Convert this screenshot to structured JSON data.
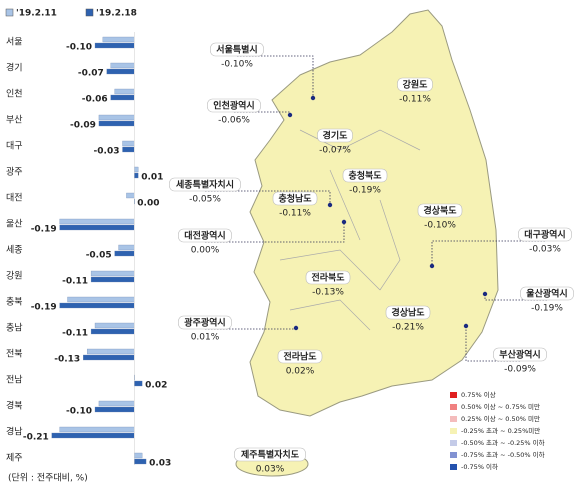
{
  "chart_data": {
    "type": "hbar",
    "categories": [
      "서울",
      "경기",
      "인천",
      "부산",
      "대구",
      "광주",
      "대전",
      "울산",
      "세종",
      "강원",
      "충북",
      "충남",
      "전북",
      "전남",
      "경북",
      "경남",
      "제주"
    ],
    "series": [
      {
        "name": "'19.2.11",
        "color": "#a9c4e6",
        "values": [
          -0.08,
          -0.06,
          -0.05,
          -0.09,
          -0.03,
          0.01,
          -0.02,
          -0.19,
          -0.04,
          -0.11,
          -0.17,
          -0.1,
          -0.12,
          0.0,
          -0.09,
          -0.19,
          0.02
        ]
      },
      {
        "name": "'19.2.18",
        "color": "#2e62b0",
        "values": [
          -0.1,
          -0.07,
          -0.06,
          -0.09,
          -0.03,
          0.01,
          0.0,
          -0.19,
          -0.05,
          -0.11,
          -0.19,
          -0.11,
          -0.13,
          0.02,
          -0.1,
          -0.21,
          0.03
        ],
        "value_labels": [
          "-0.10",
          "-0.07",
          "-0.06",
          "-0.09",
          "-0.03",
          "0.01",
          "0.00",
          "-0.19",
          "-0.05",
          "-0.11",
          "-0.19",
          "-0.11",
          "-0.13",
          "0.02",
          "-0.10",
          "-0.21",
          "0.03"
        ]
      }
    ],
    "xlim": [
      -0.24,
      0.04
    ],
    "note": "(단위 : 전주대비, %)"
  },
  "map": {
    "regions": [
      {
        "name": "서울특별시",
        "label": "-0.10%"
      },
      {
        "name": "강원도",
        "label": "-0.11%"
      },
      {
        "name": "인천광역시",
        "label": "-0.06%"
      },
      {
        "name": "경기도",
        "label": "-0.07%"
      },
      {
        "name": "충청북도",
        "label": "-0.19%"
      },
      {
        "name": "세종특별자치시",
        "label": "-0.05%"
      },
      {
        "name": "충청남도",
        "label": "-0.11%"
      },
      {
        "name": "경상북도",
        "label": "-0.10%"
      },
      {
        "name": "대전광역시",
        "label": "0.00%"
      },
      {
        "name": "대구광역시",
        "label": "-0.03%"
      },
      {
        "name": "전라북도",
        "label": "-0.13%"
      },
      {
        "name": "울산광역시",
        "label": "-0.19%"
      },
      {
        "name": "경상남도",
        "label": "-0.21%"
      },
      {
        "name": "광주광역시",
        "label": "0.01%"
      },
      {
        "name": "부산광역시",
        "label": "-0.09%"
      },
      {
        "name": "전라남도",
        "label": "0.02%"
      },
      {
        "name": "제주특별자치도",
        "label": "0.03%"
      }
    ],
    "legend": [
      {
        "color": "#e02020",
        "label": "0.75% 이상"
      },
      {
        "color": "#f08080",
        "label": "0.50% 이상 ~ 0.75% 미만"
      },
      {
        "color": "#f4bcbc",
        "label": "0.25% 이상 ~ 0.50% 미만"
      },
      {
        "color": "#f6f2b4",
        "label": "-0.25% 초과 ~ 0.25%미만"
      },
      {
        "color": "#c4cbe8",
        "label": "-0.50% 초과 ~ -0.25% 이하"
      },
      {
        "color": "#8292d2",
        "label": "-0.75% 초과 ~ -0.50% 이하"
      },
      {
        "color": "#2452ae",
        "label": "-0.75% 이하"
      }
    ]
  }
}
